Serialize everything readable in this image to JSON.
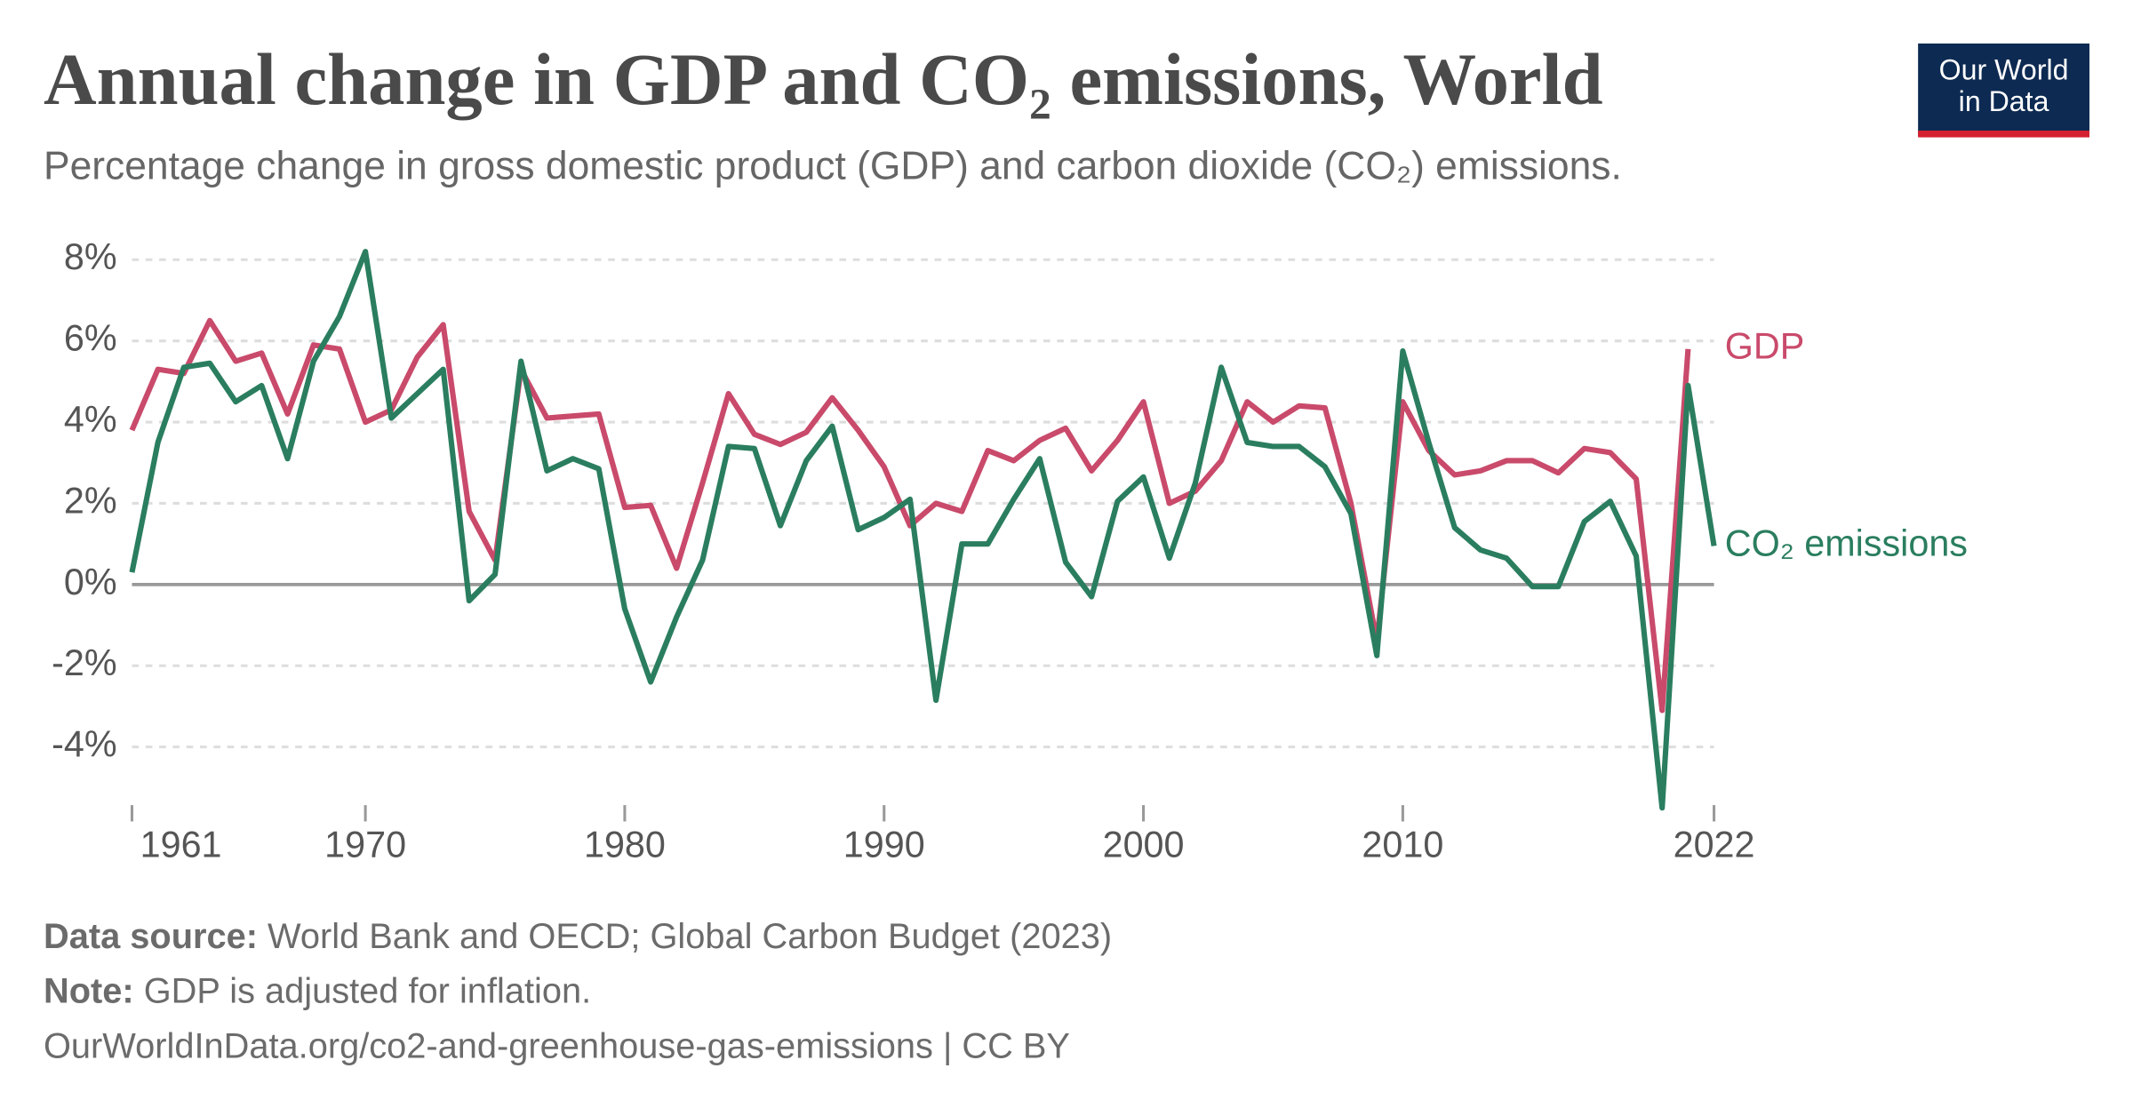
{
  "header": {
    "title": "Annual change in GDP and CO₂ emissions, World",
    "subtitle": "Percentage change in gross domestic product (GDP) and carbon dioxide (CO₂) emissions.",
    "logo": [
      "Our World",
      "in Data"
    ]
  },
  "chart_data": {
    "type": "line",
    "x": [
      1961,
      1962,
      1963,
      1964,
      1965,
      1966,
      1967,
      1968,
      1969,
      1970,
      1971,
      1972,
      1973,
      1974,
      1975,
      1976,
      1977,
      1978,
      1979,
      1980,
      1981,
      1982,
      1983,
      1984,
      1985,
      1986,
      1987,
      1988,
      1989,
      1990,
      1991,
      1992,
      1993,
      1994,
      1995,
      1996,
      1997,
      1998,
      1999,
      2000,
      2001,
      2002,
      2003,
      2004,
      2005,
      2006,
      2007,
      2008,
      2009,
      2010,
      2011,
      2012,
      2013,
      2014,
      2015,
      2016,
      2017,
      2018,
      2019,
      2020,
      2021,
      2022
    ],
    "series": [
      {
        "name": "GDP",
        "color": "#c94a6b",
        "values": [
          3.8,
          5.3,
          5.2,
          6.5,
          5.5,
          5.7,
          4.2,
          5.9,
          5.8,
          4.0,
          4.3,
          5.6,
          6.4,
          1.8,
          0.6,
          5.3,
          4.1,
          4.15,
          4.2,
          1.9,
          1.95,
          0.4,
          2.5,
          4.7,
          3.7,
          3.45,
          3.75,
          4.6,
          3.8,
          2.9,
          1.45,
          2.0,
          1.8,
          3.3,
          3.05,
          3.55,
          3.85,
          2.8,
          3.55,
          4.5,
          2.0,
          2.3,
          3.05,
          4.5,
          4.0,
          4.4,
          4.35,
          2.0,
          -1.4,
          4.5,
          3.3,
          2.7,
          2.8,
          3.05,
          3.05,
          2.75,
          3.35,
          3.25,
          2.6,
          -3.1,
          5.8,
          null
        ]
      },
      {
        "name": "CO₂ emissions",
        "color": "#2a7e5f",
        "values": [
          0.3,
          3.5,
          5.35,
          5.45,
          4.5,
          4.9,
          3.1,
          5.5,
          6.6,
          8.2,
          4.1,
          4.7,
          5.3,
          -0.4,
          0.25,
          5.5,
          2.8,
          3.1,
          2.85,
          -0.6,
          -2.4,
          -0.8,
          0.6,
          3.4,
          3.35,
          1.45,
          3.05,
          3.9,
          1.35,
          1.65,
          2.1,
          -2.85,
          1.0,
          1.0,
          2.1,
          3.1,
          0.55,
          -0.3,
          2.05,
          2.65,
          0.65,
          2.5,
          5.35,
          3.5,
          3.4,
          3.4,
          2.9,
          1.75,
          -1.75,
          5.75,
          3.5,
          1.4,
          0.85,
          0.65,
          -0.05,
          -0.05,
          1.55,
          2.05,
          0.7,
          -5.5,
          4.9,
          0.95
        ]
      }
    ],
    "xlim": [
      1961,
      2022
    ],
    "xticks": [
      1961,
      1970,
      1980,
      1990,
      2000,
      2010,
      2022
    ],
    "ylim": [
      -5.6,
      8.3
    ],
    "yticks": [
      {
        "value": -4,
        "label": "-4%"
      },
      {
        "value": -2,
        "label": "-2%"
      },
      {
        "value": 0,
        "label": "0%"
      },
      {
        "value": 2,
        "label": "2%"
      },
      {
        "value": 4,
        "label": "4%"
      },
      {
        "value": 6,
        "label": "6%"
      },
      {
        "value": 8,
        "label": "8%"
      }
    ],
    "grid": true
  },
  "footer": {
    "source_label": "Data source:",
    "source_text": "World Bank and OECD; Global Carbon Budget (2023)",
    "note_label": "Note:",
    "note_text": "GDP is adjusted for inflation.",
    "url": "OurWorldInData.org/co2-and-greenhouse-gas-emissions | CC BY"
  }
}
